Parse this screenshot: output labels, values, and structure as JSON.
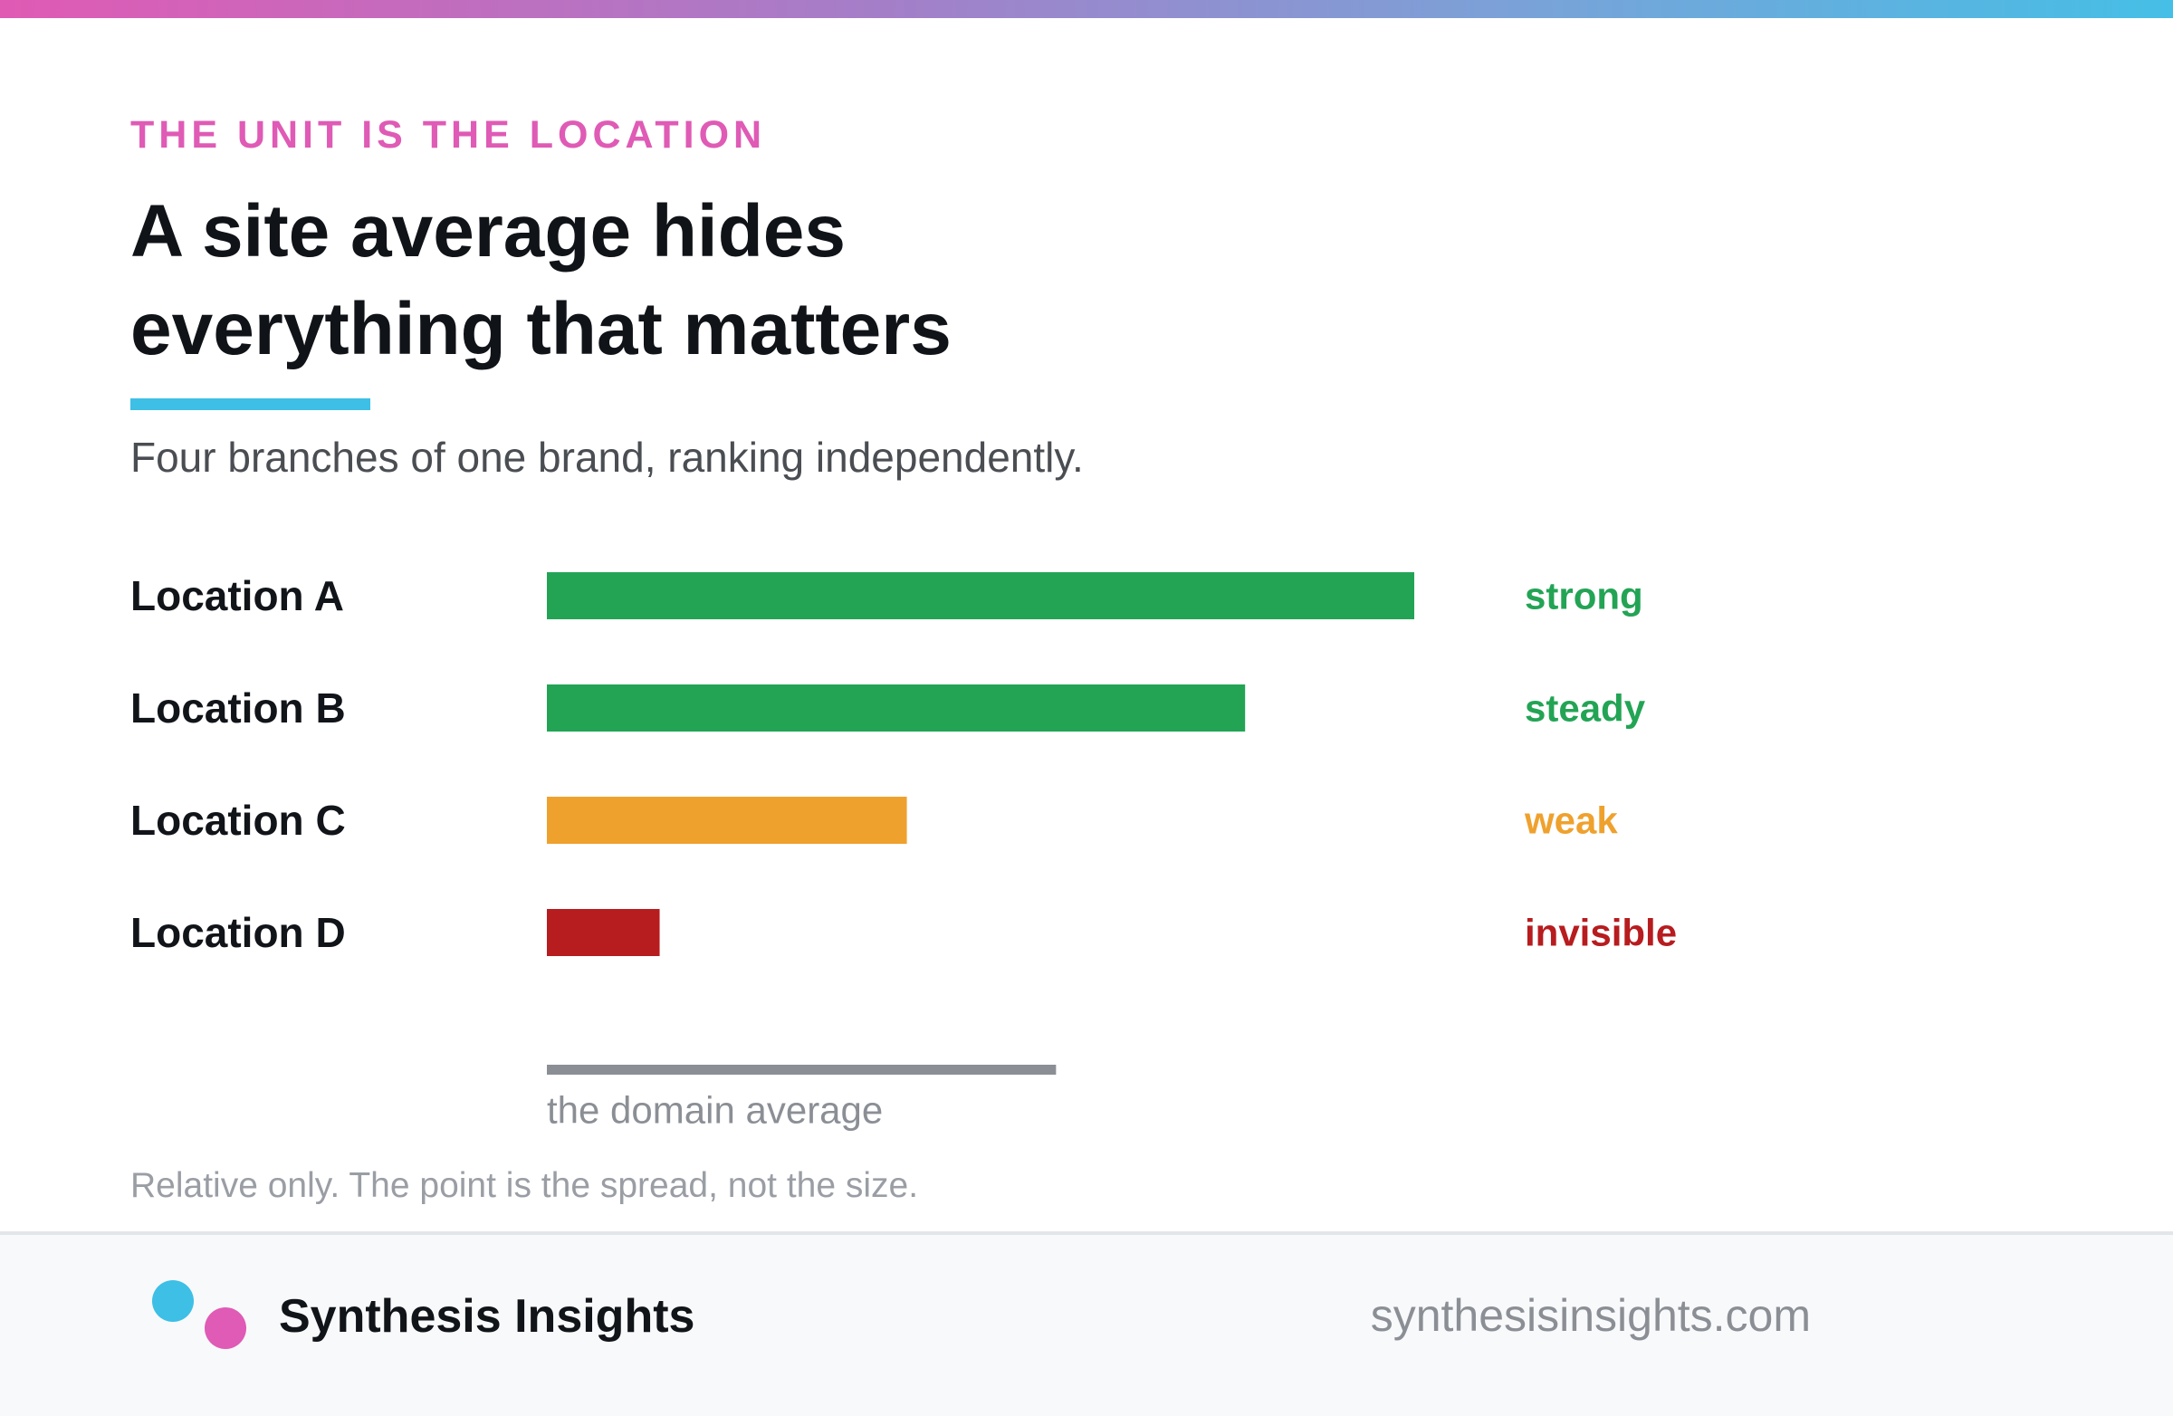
{
  "eyebrow": "THE UNIT IS THE LOCATION",
  "headline": {
    "line1": "A site average hides",
    "line2": "everything that matters"
  },
  "subtitle": "Four branches of one brand, ranking independently.",
  "chart_data": {
    "type": "bar",
    "orientation": "horizontal",
    "categories": [
      "Location A",
      "Location B",
      "Location C",
      "Location D"
    ],
    "values": [
      100,
      80.5,
      41.5,
      13
    ],
    "status_labels": [
      "strong",
      "steady",
      "weak",
      "invisible"
    ],
    "colors": [
      "#23a455",
      "#23a455",
      "#efa12d",
      "#b71c1f"
    ],
    "reference": {
      "label": "the domain average",
      "value": 58.7,
      "color": "#8b8f95"
    },
    "xlim": [
      0,
      100
    ],
    "grid": false,
    "axes_visible": false
  },
  "footnote": "Relative only. The point is the spread, not the size.",
  "footer": {
    "brand": "Synthesis Insights",
    "url": "synthesisinsights.com"
  },
  "colors": {
    "accent_pink": "#df5bb5",
    "accent_blue": "#3dbfe6",
    "text_dark": "#111418",
    "text_muted": "#8b8f95"
  }
}
